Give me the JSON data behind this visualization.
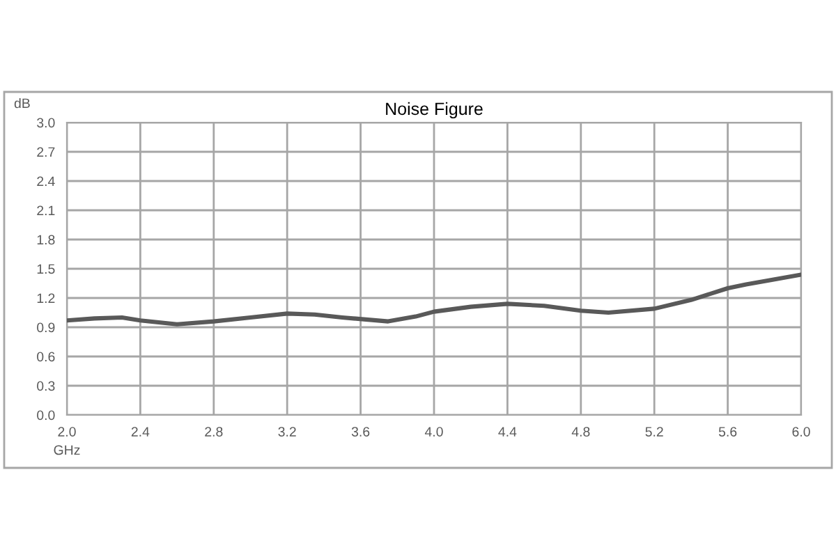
{
  "chart_data": {
    "type": "line",
    "title": "Noise Figure",
    "xlabel": "GHz",
    "ylabel": "dB",
    "series": [
      {
        "color": "#595959",
        "x": [
          2.0,
          2.15,
          2.3,
          2.4,
          2.6,
          2.8,
          3.0,
          3.2,
          3.35,
          3.5,
          3.75,
          3.9,
          4.0,
          4.2,
          4.4,
          4.6,
          4.8,
          4.95,
          5.2,
          5.4,
          5.6,
          5.7,
          5.85,
          6.0
        ],
        "values": [
          0.97,
          0.99,
          1.0,
          0.97,
          0.93,
          0.96,
          1.0,
          1.04,
          1.03,
          1.0,
          0.96,
          1.01,
          1.06,
          1.11,
          1.14,
          1.12,
          1.07,
          1.05,
          1.09,
          1.18,
          1.3,
          1.34,
          1.39,
          1.44
        ]
      }
    ],
    "xlim": [
      2.0,
      6.0
    ],
    "ylim": [
      0.0,
      3.0
    ],
    "xticks": [
      {
        "value": 2,
        "label": "2.0"
      },
      2.4,
      2.8,
      3.2,
      3.6,
      {
        "value": 4,
        "label": "4.0"
      },
      4.4,
      4.8,
      5.2,
      5.6,
      {
        "value": 6,
        "label": "6.0"
      }
    ],
    "yticks": [
      {
        "value": 0,
        "label": "0.0"
      },
      0.3,
      0.6,
      0.9,
      1.2,
      1.5,
      1.8,
      2.1,
      2.4,
      2.7,
      {
        "value": 3,
        "label": "3.0"
      }
    ],
    "grid": true,
    "marker": "none",
    "line_style": "solid"
  }
}
